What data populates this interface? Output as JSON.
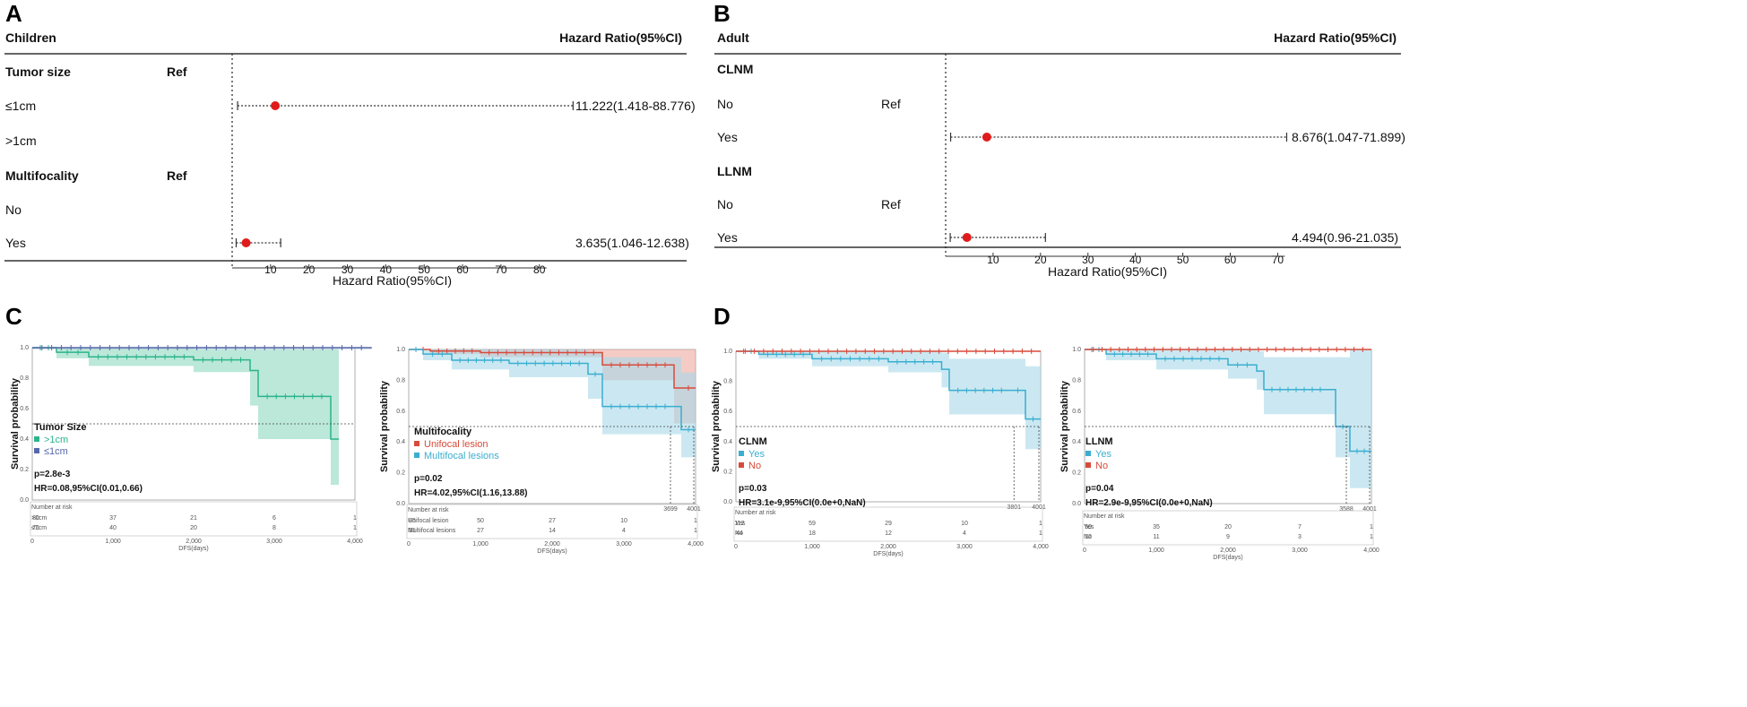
{
  "panel_labels": [
    "A",
    "B",
    "C",
    "D"
  ],
  "forest_plots": [
    {
      "label": "A",
      "header_left": "Children",
      "header_right": "Hazard Ratio(95%CI)",
      "xlabel": "Hazard Ratio(95%CI)",
      "ticks": [
        10,
        20,
        30,
        40,
        50,
        60,
        70,
        80
      ],
      "xlim": [
        0,
        88
      ],
      "rows": [
        {
          "label": "Tumor size",
          "bold": true,
          "ref": "Ref"
        },
        {
          "label": "≤1cm",
          "bold": false,
          "ref": "",
          "hr": 11.222,
          "lo": 1.418,
          "hi": 88.776,
          "text": "11.222(1.418-88.776)"
        },
        {
          "label": ">1cm",
          "bold": false,
          "ref": ""
        },
        {
          "label": "Multifocality",
          "bold": true,
          "ref": "Ref"
        },
        {
          "label": "No",
          "bold": false,
          "ref": ""
        },
        {
          "label": "Yes",
          "bold": false,
          "ref": "",
          "hr": 3.635,
          "lo": 1.046,
          "hi": 12.638,
          "text": "3.635(1.046-12.638)"
        }
      ]
    },
    {
      "label": "B",
      "header_left": "Adult",
      "header_right": "Hazard Ratio(95%CI)",
      "xlabel": "Hazard Ratio(95%CI)",
      "ticks": [
        10,
        20,
        30,
        40,
        50,
        60,
        70
      ],
      "xlim": [
        0,
        72
      ],
      "rows": [
        {
          "label": "CLNM",
          "bold": true,
          "ref": ""
        },
        {
          "label": "No",
          "bold": false,
          "ref": "Ref"
        },
        {
          "label": "Yes",
          "bold": false,
          "ref": "",
          "hr": 8.676,
          "lo": 1.047,
          "hi": 71.899,
          "text": "8.676(1.047-71.899)"
        },
        {
          "label": "LLNM",
          "bold": true,
          "ref": ""
        },
        {
          "label": "No",
          "bold": false,
          "ref": "Ref"
        },
        {
          "label": "Yes",
          "bold": false,
          "ref": "",
          "hr": 4.494,
          "lo": 0.96,
          "hi": 21.035,
          "text": "4.494(0.96-21.035)"
        }
      ]
    }
  ],
  "chart_data": [
    {
      "type": "line",
      "panel": "C",
      "title": "Tumor Size",
      "ylabel": "Survival probability",
      "xlabel": "DFS(days)",
      "xlim": [
        0,
        4000
      ],
      "ylim": [
        0,
        1
      ],
      "xticks": [
        "0",
        "1,000",
        "2,000",
        "3,000",
        "4,000"
      ],
      "yticks": [
        "0.0",
        "0.2",
        "0.4",
        "0.6",
        "0.8",
        "1.0"
      ],
      "p_text": "p=2.8e-3",
      "hr_text": "HR=0.08,95%CI(0.01,0.66)",
      "risk_title": "Number at risk",
      "series": [
        {
          "name": ">1cm",
          "color": "#2bb48c",
          "ci_color": "#8ed8be",
          "x": [
            0,
            300,
            700,
            2000,
            2700,
            2800,
            3700,
            3800
          ],
          "y": [
            1.0,
            0.97,
            0.94,
            0.92,
            0.85,
            0.68,
            0.4,
            0.4
          ],
          "lo": [
            1.0,
            0.93,
            0.88,
            0.84,
            0.62,
            0.4,
            0.1,
            0.1
          ],
          "hi": [
            1.0,
            1.0,
            1.0,
            0.99,
            0.99,
            0.99,
            0.99,
            0.99
          ],
          "risk": [
            "80",
            "37",
            "21",
            "6",
            "1"
          ]
        },
        {
          "name": "≤1cm",
          "color": "#5568a8",
          "ci_color": "#b8c0dc",
          "x": [
            0,
            4200
          ],
          "y": [
            1.0,
            0.995
          ],
          "lo": [
            0.99,
            0.985
          ],
          "hi": [
            1.0,
            1.0
          ],
          "risk": [
            "76",
            "40",
            "20",
            "8",
            "1"
          ]
        }
      ]
    },
    {
      "type": "line",
      "panel": "C",
      "title": "Multifocality",
      "ylabel": "Survival probability",
      "xlabel": "DFS(days)",
      "xlim": [
        0,
        4000
      ],
      "ylim": [
        0,
        1
      ],
      "xticks": [
        "0",
        "1,000",
        "2,000",
        "3,000",
        "4,000"
      ],
      "yticks": [
        "0.0",
        "0.2",
        "0.4",
        "0.6",
        "0.8",
        "1.0"
      ],
      "p_text": "p=0.02",
      "hr_text": "HR=4.02,95%CI(1.16,13.88)",
      "risk_title": "Number at risk",
      "median_labels": [
        "3699",
        "4001"
      ],
      "series": [
        {
          "name": "Unifocal lesion",
          "color": "#d84a3a",
          "ci_color": "#eea99e",
          "x": [
            0,
            300,
            1000,
            2700,
            3700,
            3800,
            4000
          ],
          "y": [
            1.0,
            0.99,
            0.98,
            0.9,
            0.75,
            0.75,
            0.75
          ],
          "lo": [
            1.0,
            0.97,
            0.95,
            0.8,
            0.52,
            0.52,
            0.52
          ],
          "hi": [
            1.0,
            1.0,
            1.0,
            1.0,
            1.0,
            1.0,
            1.0
          ],
          "risk": [
            "85",
            "50",
            "27",
            "10",
            "1"
          ]
        },
        {
          "name": "Multifocal lesions",
          "color": "#3aaed0",
          "ci_color": "#a9d9ea",
          "x": [
            0,
            200,
            600,
            1400,
            2500,
            2700,
            3700,
            3800,
            4000
          ],
          "y": [
            1.0,
            0.97,
            0.93,
            0.91,
            0.84,
            0.63,
            0.63,
            0.48,
            0.48
          ],
          "lo": [
            1.0,
            0.93,
            0.87,
            0.82,
            0.68,
            0.45,
            0.45,
            0.3,
            0.3
          ],
          "hi": [
            1.0,
            1.0,
            1.0,
            1.0,
            0.98,
            0.95,
            0.95,
            0.85,
            0.85
          ],
          "risk": [
            "51",
            "27",
            "14",
            "4",
            "1"
          ]
        }
      ]
    },
    {
      "type": "line",
      "panel": "D",
      "title": "CLNM",
      "ylabel": "Survival probability",
      "xlabel": "DFS(days)",
      "xlim": [
        0,
        4000
      ],
      "ylim": [
        0,
        1
      ],
      "xticks": [
        "0",
        "1,000",
        "2,000",
        "3,000",
        "4,000"
      ],
      "yticks": [
        "0.0",
        "0.2",
        "0.4",
        "0.6",
        "0.8",
        "1.0"
      ],
      "p_text": "p=0.03",
      "hr_text": "HR=3.1e-9,95%CI(0.0e+0,NaN)",
      "risk_title": "Number at risk",
      "median_labels": [
        "3801",
        "4001"
      ],
      "series": [
        {
          "name": "Yes",
          "color": "#3aaed0",
          "ci_color": "#a9d9ea",
          "x": [
            0,
            300,
            1000,
            2000,
            2700,
            2800,
            3600,
            3800,
            4000
          ],
          "y": [
            1.0,
            0.98,
            0.95,
            0.93,
            0.88,
            0.74,
            0.74,
            0.55,
            0.55
          ],
          "lo": [
            1.0,
            0.95,
            0.9,
            0.86,
            0.76,
            0.58,
            0.58,
            0.35,
            0.35
          ],
          "hi": [
            1.0,
            1.0,
            1.0,
            1.0,
            0.99,
            0.95,
            0.95,
            0.9,
            0.9
          ],
          "risk": [
            "112",
            "59",
            "29",
            "10",
            "1"
          ]
        },
        {
          "name": "No",
          "color": "#d84a3a",
          "ci_color": "#eea99e",
          "x": [
            0,
            4000
          ],
          "y": [
            1.0,
            1.0
          ],
          "lo": [
            1.0,
            1.0
          ],
          "hi": [
            1.0,
            1.0
          ],
          "risk": [
            "44",
            "18",
            "12",
            "4",
            "1"
          ]
        }
      ]
    },
    {
      "type": "line",
      "panel": "D",
      "title": "LLNM",
      "ylabel": "Survival probability",
      "xlabel": "DFS(days)",
      "xlim": [
        0,
        4000
      ],
      "ylim": [
        0,
        1
      ],
      "xticks": [
        "0",
        "1,000",
        "2,000",
        "3,000",
        "4,000"
      ],
      "yticks": [
        "0.0",
        "0.2",
        "0.4",
        "0.6",
        "0.8",
        "1.0"
      ],
      "p_text": "p=0.04",
      "hr_text": "HR=2.9e-9,95%CI(0.0e+0,NaN)",
      "risk_title": "Number at risk",
      "median_labels": [
        "3588",
        "4001"
      ],
      "series": [
        {
          "name": "Yes",
          "color": "#3aaed0",
          "ci_color": "#a9d9ea",
          "x": [
            0,
            300,
            1000,
            2000,
            2400,
            2500,
            3400,
            3500,
            3700,
            4000
          ],
          "y": [
            1.0,
            0.97,
            0.94,
            0.9,
            0.86,
            0.74,
            0.74,
            0.5,
            0.34,
            0.34
          ],
          "lo": [
            1.0,
            0.93,
            0.87,
            0.81,
            0.74,
            0.58,
            0.58,
            0.3,
            0.1,
            0.1
          ],
          "hi": [
            1.0,
            1.0,
            1.0,
            1.0,
            0.99,
            0.95,
            0.95,
            0.95,
            1.0,
            1.0
          ],
          "risk": [
            "50",
            "35",
            "20",
            "7",
            "1"
          ]
        },
        {
          "name": "No",
          "color": "#d84a3a",
          "ci_color": "#eea99e",
          "x": [
            0,
            4000
          ],
          "y": [
            1.0,
            1.0
          ],
          "lo": [
            1.0,
            1.0
          ],
          "hi": [
            1.0,
            1.0
          ],
          "risk": [
            "12",
            "11",
            "9",
            "3",
            "1"
          ]
        }
      ]
    }
  ]
}
